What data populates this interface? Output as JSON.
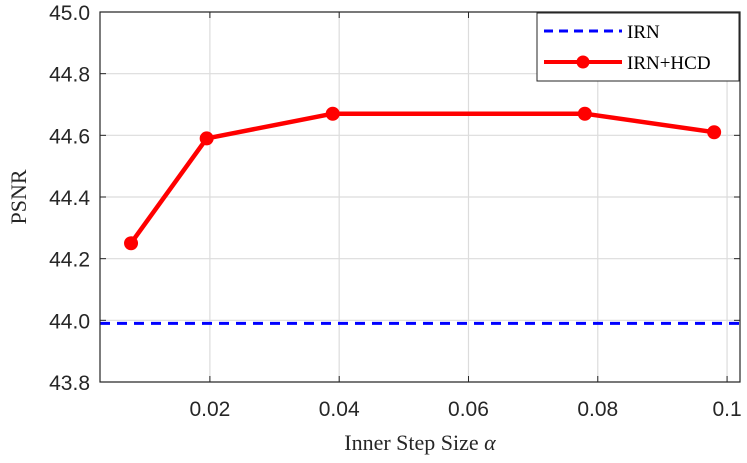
{
  "chart_data": {
    "type": "line",
    "xlabel_text": "Inner Step Size",
    "xlabel_symbol": "α",
    "ylabel": "PSNR",
    "xlim": [
      0.003,
      0.102
    ],
    "ylim": [
      43.8,
      45.0
    ],
    "xticks": [
      0.02,
      0.04,
      0.06,
      0.08,
      0.1
    ],
    "xtick_labels": [
      "0.02",
      "0.04",
      "0.06",
      "0.08",
      "0.1"
    ],
    "yticks": [
      43.8,
      44.0,
      44.2,
      44.4,
      44.6,
      44.8,
      45.0
    ],
    "ytick_labels": [
      "43.8",
      "44.0",
      "44.2",
      "44.4",
      "44.6",
      "44.8",
      "45.0"
    ],
    "grid": true,
    "legend_position": "top-right",
    "series": [
      {
        "name": "IRN",
        "style": "dashed",
        "color": "#0000ff",
        "x": [
          0.003,
          0.102
        ],
        "y": [
          43.99,
          43.99
        ]
      },
      {
        "name": "IRN+HCD",
        "style": "solid-marker",
        "color": "#ff0000",
        "x": [
          0.0078,
          0.0195,
          0.039,
          0.078,
          0.098
        ],
        "y": [
          44.25,
          44.59,
          44.67,
          44.67,
          44.61
        ]
      }
    ]
  }
}
